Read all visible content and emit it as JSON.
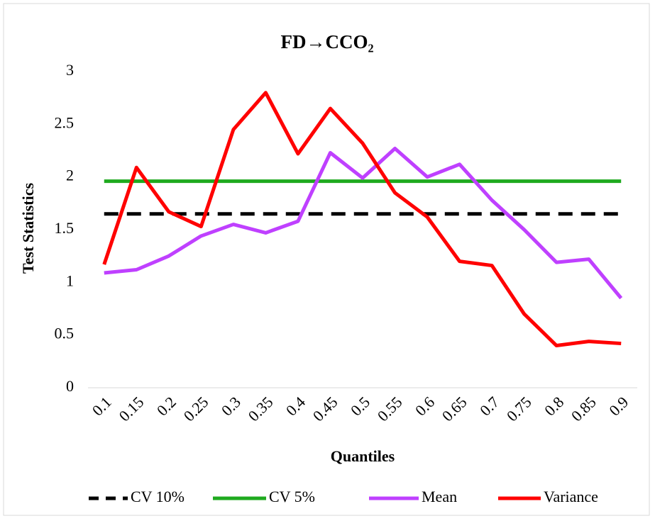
{
  "chart_data": {
    "type": "line",
    "title": "FD→CCO₂",
    "x_label": "Quantiles",
    "y_label": "Test Statistics",
    "categories": [
      "0.1",
      "0.15",
      "0.2",
      "0.25",
      "0.3",
      "0.35",
      "0.4",
      "0.45",
      "0.5",
      "0.55",
      "0.6",
      "0.65",
      "0.7",
      "0.75",
      "0.8",
      "0.85",
      "0.9"
    ],
    "series": [
      {
        "name": "CV 10%",
        "color": "#000000",
        "line_style": "dashed",
        "values": [
          1.65,
          1.65,
          1.65,
          1.65,
          1.65,
          1.65,
          1.65,
          1.65,
          1.65,
          1.65,
          1.65,
          1.65,
          1.65,
          1.65,
          1.65,
          1.65,
          1.65
        ]
      },
      {
        "name": "CV 5%",
        "color": "#1faa1f",
        "line_style": "solid",
        "values": [
          1.96,
          1.96,
          1.96,
          1.96,
          1.96,
          1.96,
          1.96,
          1.96,
          1.96,
          1.96,
          1.96,
          1.96,
          1.96,
          1.96,
          1.96,
          1.96,
          1.96
        ]
      },
      {
        "name": "Mean",
        "color": "#bf40ff",
        "line_style": "solid",
        "values": [
          1.09,
          1.12,
          1.25,
          1.44,
          1.55,
          1.47,
          1.58,
          2.23,
          1.99,
          2.27,
          2.0,
          2.12,
          1.78,
          1.5,
          1.19,
          1.22,
          0.85
        ]
      },
      {
        "name": "Variance",
        "color": "#ff0000",
        "line_style": "solid",
        "values": [
          1.17,
          2.09,
          1.67,
          1.53,
          2.45,
          2.8,
          2.22,
          2.65,
          2.32,
          1.85,
          1.62,
          1.2,
          1.16,
          0.7,
          0.4,
          0.44,
          0.42
        ]
      }
    ],
    "ylim": [
      0,
      3
    ],
    "yticks": [
      0,
      0.5,
      1,
      1.5,
      2,
      2.5,
      3
    ],
    "grid": false,
    "legend": "bottom"
  }
}
